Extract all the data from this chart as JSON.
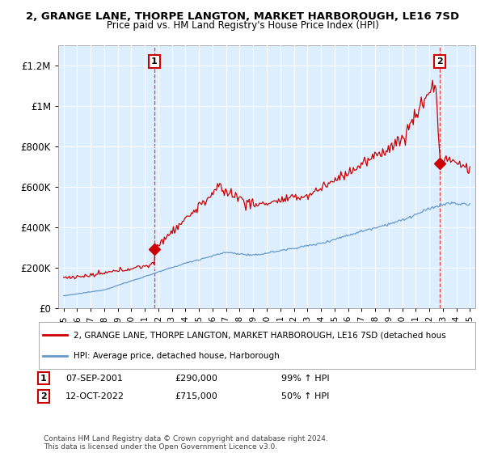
{
  "title1": "2, GRANGE LANE, THORPE LANGTON, MARKET HARBOROUGH, LE16 7SD",
  "title2": "Price paid vs. HM Land Registry's House Price Index (HPI)",
  "legend_label1": "2, GRANGE LANE, THORPE LANGTON, MARKET HARBOROUGH, LE16 7SD (detached hous",
  "legend_label2": "HPI: Average price, detached house, Harborough",
  "annotation1_label": "1",
  "annotation1_date": "07-SEP-2001",
  "annotation1_price": "£290,000",
  "annotation1_hpi": "99% ↑ HPI",
  "annotation2_label": "2",
  "annotation2_date": "12-OCT-2022",
  "annotation2_price": "£715,000",
  "annotation2_hpi": "50% ↑ HPI",
  "footer": "Contains HM Land Registry data © Crown copyright and database right 2024.\nThis data is licensed under the Open Government Licence v3.0.",
  "red_color": "#cc0000",
  "blue_color": "#6699cc",
  "bg_color": "#ddeeff",
  "annotation_vline_color": "#dd4444",
  "ylim": [
    0,
    1300000
  ],
  "yticks": [
    0,
    200000,
    400000,
    600000,
    800000,
    1000000,
    1200000
  ],
  "ytick_labels": [
    "£0",
    "£200K",
    "£400K",
    "£600K",
    "£800K",
    "£1M",
    "£1.2M"
  ],
  "purchase1_year": 2001.7,
  "purchase1_price": 290000,
  "purchase2_year": 2022.78,
  "purchase2_price": 715000
}
